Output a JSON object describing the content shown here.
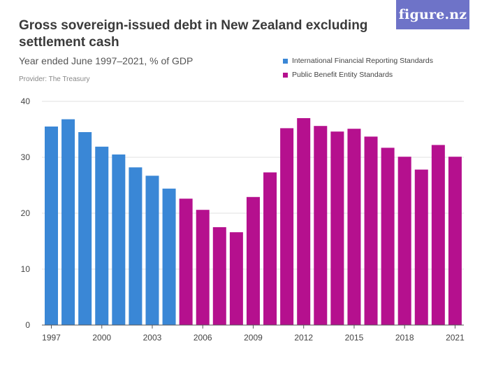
{
  "header": {
    "title": "Gross sovereign-issued debt in New Zealand excluding settlement cash",
    "subtitle": "Year ended June 1997–2021, % of GDP",
    "provider": "Provider: The Treasury",
    "logo_text": "figure.nz"
  },
  "legend": {
    "items": [
      {
        "label": "International Financial Reporting Standards",
        "color": "#3a87d6"
      },
      {
        "label": "Public Benefit Entity Standards",
        "color": "#b5108e"
      }
    ]
  },
  "chart_data": {
    "type": "bar",
    "title": "Gross sovereign-issued debt in New Zealand excluding settlement cash",
    "subtitle": "Year ended June 1997–2021, % of GDP",
    "xlabel": "",
    "ylabel": "% of GDP",
    "ylim": [
      0,
      40
    ],
    "yticks": [
      0,
      10,
      20,
      30,
      40
    ],
    "xtick_labels": [
      "1997",
      "2000",
      "2003",
      "2006",
      "2009",
      "2012",
      "2015",
      "2018",
      "2021"
    ],
    "categories": [
      "1997",
      "1998",
      "1999",
      "2000",
      "2001",
      "2002",
      "2003",
      "2004",
      "2005",
      "2006",
      "2007",
      "2008",
      "2009",
      "2010",
      "2011",
      "2012",
      "2013",
      "2014",
      "2015",
      "2016",
      "2017",
      "2018",
      "2019",
      "2020",
      "2021"
    ],
    "values": [
      35.5,
      36.8,
      34.5,
      31.9,
      30.5,
      28.2,
      26.7,
      24.4,
      22.6,
      20.6,
      17.5,
      16.6,
      22.9,
      27.3,
      35.2,
      37.0,
      35.6,
      34.6,
      35.1,
      33.7,
      31.7,
      30.1,
      27.8,
      32.2,
      30.1
    ],
    "series_assignment": [
      "IFRS",
      "IFRS",
      "IFRS",
      "IFRS",
      "IFRS",
      "IFRS",
      "IFRS",
      "IFRS",
      "PBE",
      "PBE",
      "PBE",
      "PBE",
      "PBE",
      "PBE",
      "PBE",
      "PBE",
      "PBE",
      "PBE",
      "PBE",
      "PBE",
      "PBE",
      "PBE",
      "PBE",
      "PBE",
      "PBE"
    ],
    "series": [
      {
        "name": "International Financial Reporting Standards",
        "key": "IFRS",
        "color": "#3a87d6"
      },
      {
        "name": "Public Benefit Entity Standards",
        "key": "PBE",
        "color": "#b5108e"
      }
    ],
    "grid": true,
    "legend_position": "top-right"
  }
}
